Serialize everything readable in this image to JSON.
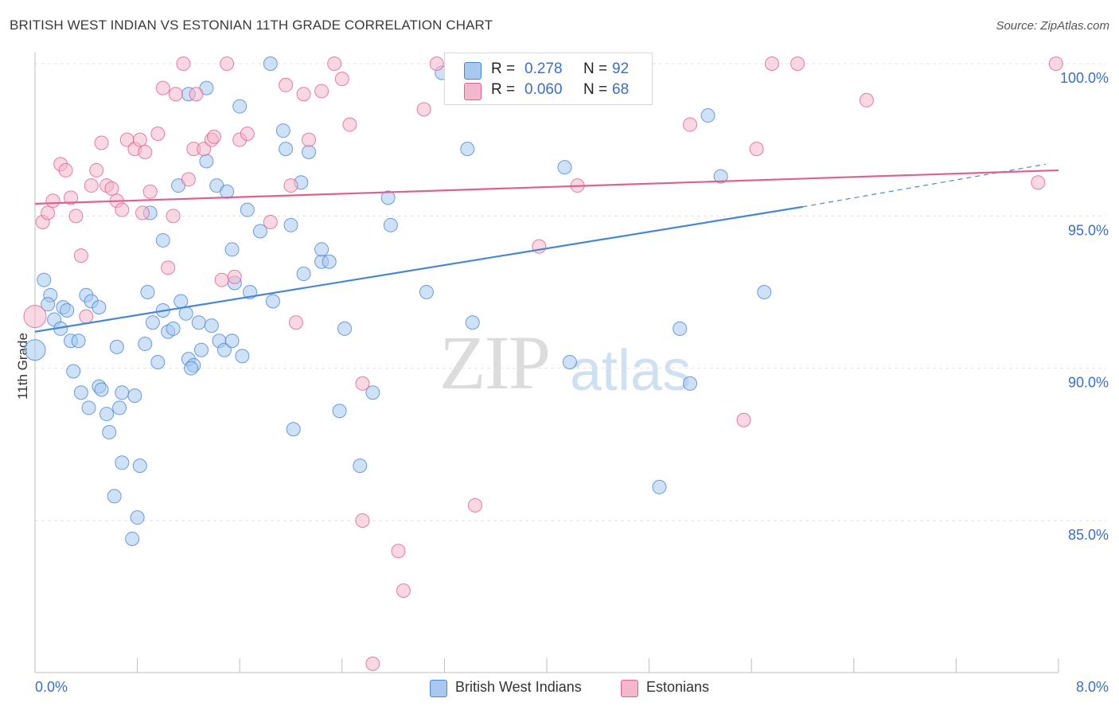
{
  "title": "BRITISH WEST INDIAN VS ESTONIAN 11TH GRADE CORRELATION CHART",
  "source": "Source: ZipAtlas.com",
  "watermark": {
    "zip": "ZIP",
    "atlas": "atlas"
  },
  "legend": {
    "r_label": "R =",
    "n_label": "N =",
    "rows": [
      {
        "name": "British West Indians",
        "r": "0.278",
        "n": "92",
        "color": "#a8c8f0"
      },
      {
        "name": "Estonians",
        "r": "0.060",
        "n": "68",
        "color": "#f4b8cc"
      }
    ]
  },
  "chart_data": {
    "type": "scatter",
    "title": "BRITISH WEST INDIAN VS ESTONIAN 11TH GRADE CORRELATION CHART",
    "xlabel": "",
    "ylabel": "11th Grade",
    "xlim": [
      0,
      8
    ],
    "ylim": [
      80,
      100.5
    ],
    "x_tick_labels": [
      "0.0%",
      "8.0%"
    ],
    "y_ticks": [
      85,
      90,
      95,
      100
    ],
    "y_tick_labels": [
      "85.0%",
      "90.0%",
      "95.0%",
      "100.0%"
    ],
    "grid": true,
    "series": [
      {
        "name": "British West Indians",
        "color": "#4a86d4",
        "fill": "#a8c8f0",
        "trend": {
          "x0": 0,
          "y0": 91.2,
          "x1": 6.0,
          "y1": 95.3,
          "dash_to_x": 7.9,
          "dash_to_y": 96.7
        },
        "points": [
          [
            0.0,
            90.6
          ],
          [
            0.07,
            92.9
          ],
          [
            0.12,
            92.4
          ],
          [
            0.1,
            92.1
          ],
          [
            0.15,
            91.6
          ],
          [
            0.22,
            92.0
          ],
          [
            0.25,
            91.9
          ],
          [
            0.2,
            91.3
          ],
          [
            0.28,
            90.9
          ],
          [
            0.34,
            90.9
          ],
          [
            0.3,
            89.9
          ],
          [
            0.4,
            92.4
          ],
          [
            0.44,
            92.2
          ],
          [
            0.5,
            92.0
          ],
          [
            0.36,
            89.2
          ],
          [
            0.42,
            88.7
          ],
          [
            0.5,
            89.4
          ],
          [
            0.52,
            89.3
          ],
          [
            0.66,
            88.7
          ],
          [
            0.68,
            89.2
          ],
          [
            0.78,
            89.1
          ],
          [
            0.58,
            87.9
          ],
          [
            0.68,
            86.9
          ],
          [
            0.82,
            86.8
          ],
          [
            0.62,
            85.8
          ],
          [
            0.8,
            85.1
          ],
          [
            0.76,
            84.4
          ],
          [
            0.64,
            90.7
          ],
          [
            0.86,
            90.8
          ],
          [
            0.96,
            90.2
          ],
          [
            0.92,
            91.5
          ],
          [
            1.04,
            91.2
          ],
          [
            0.88,
            92.5
          ],
          [
            1.0,
            91.9
          ],
          [
            1.08,
            91.3
          ],
          [
            1.14,
            92.2
          ],
          [
            1.2,
            90.3
          ],
          [
            1.24,
            90.1
          ],
          [
            1.3,
            90.6
          ],
          [
            1.28,
            91.5
          ],
          [
            1.38,
            91.4
          ],
          [
            1.44,
            90.9
          ],
          [
            1.48,
            90.6
          ],
          [
            1.54,
            90.9
          ],
          [
            1.62,
            90.4
          ],
          [
            1.56,
            92.8
          ],
          [
            1.68,
            92.5
          ],
          [
            1.86,
            92.2
          ],
          [
            1.0,
            94.2
          ],
          [
            1.12,
            96.0
          ],
          [
            1.2,
            99.0
          ],
          [
            1.34,
            96.8
          ],
          [
            1.42,
            96.0
          ],
          [
            1.5,
            95.8
          ],
          [
            1.54,
            93.9
          ],
          [
            1.34,
            99.2
          ],
          [
            1.6,
            98.6
          ],
          [
            1.66,
            95.2
          ],
          [
            0.9,
            95.1
          ],
          [
            1.84,
            100.0
          ],
          [
            1.94,
            97.8
          ],
          [
            1.96,
            97.2
          ],
          [
            2.0,
            94.7
          ],
          [
            2.08,
            96.1
          ],
          [
            2.1,
            93.1
          ],
          [
            2.14,
            97.1
          ],
          [
            2.24,
            93.5
          ],
          [
            2.24,
            93.9
          ],
          [
            2.3,
            93.5
          ],
          [
            2.38,
            88.6
          ],
          [
            2.02,
            88.0
          ],
          [
            2.42,
            91.3
          ],
          [
            2.54,
            86.8
          ],
          [
            2.64,
            89.2
          ],
          [
            2.76,
            95.6
          ],
          [
            2.78,
            94.7
          ],
          [
            3.06,
            92.5
          ],
          [
            3.18,
            99.7
          ],
          [
            3.38,
            97.2
          ],
          [
            3.42,
            91.5
          ],
          [
            4.14,
            96.6
          ],
          [
            4.18,
            90.2
          ],
          [
            4.88,
            86.1
          ],
          [
            5.04,
            91.3
          ],
          [
            5.12,
            89.5
          ],
          [
            5.26,
            98.3
          ],
          [
            5.36,
            96.3
          ],
          [
            5.7,
            92.5
          ],
          [
            1.18,
            91.8
          ],
          [
            1.22,
            90.0
          ],
          [
            0.56,
            88.5
          ],
          [
            1.76,
            94.5
          ]
        ]
      },
      {
        "name": "Estonians",
        "color": "#e0608e",
        "fill": "#f4b8cc",
        "trend": {
          "x0": 0,
          "y0": 95.4,
          "x1": 8.0,
          "y1": 96.5
        },
        "points": [
          [
            0.0,
            91.7
          ],
          [
            0.06,
            94.8
          ],
          [
            0.1,
            95.1
          ],
          [
            0.14,
            95.5
          ],
          [
            0.2,
            96.7
          ],
          [
            0.24,
            96.5
          ],
          [
            0.28,
            95.6
          ],
          [
            0.32,
            95.0
          ],
          [
            0.36,
            93.7
          ],
          [
            0.4,
            91.7
          ],
          [
            0.44,
            96.0
          ],
          [
            0.48,
            96.5
          ],
          [
            0.52,
            97.4
          ],
          [
            0.56,
            96.0
          ],
          [
            0.6,
            95.9
          ],
          [
            0.64,
            95.5
          ],
          [
            0.68,
            95.2
          ],
          [
            0.72,
            97.5
          ],
          [
            0.78,
            97.2
          ],
          [
            0.82,
            97.5
          ],
          [
            0.84,
            95.1
          ],
          [
            0.86,
            97.1
          ],
          [
            0.9,
            95.8
          ],
          [
            0.96,
            97.7
          ],
          [
            1.0,
            99.2
          ],
          [
            1.04,
            93.3
          ],
          [
            1.08,
            95.0
          ],
          [
            1.1,
            99.0
          ],
          [
            1.16,
            100.0
          ],
          [
            1.2,
            96.2
          ],
          [
            1.24,
            97.2
          ],
          [
            1.26,
            99.0
          ],
          [
            1.32,
            97.2
          ],
          [
            1.38,
            97.5
          ],
          [
            1.4,
            97.6
          ],
          [
            1.46,
            92.9
          ],
          [
            1.5,
            100.0
          ],
          [
            1.56,
            93.0
          ],
          [
            1.6,
            97.5
          ],
          [
            1.66,
            97.7
          ],
          [
            1.84,
            94.8
          ],
          [
            1.96,
            99.3
          ],
          [
            2.0,
            96.0
          ],
          [
            2.04,
            91.5
          ],
          [
            2.1,
            99.0
          ],
          [
            2.14,
            97.5
          ],
          [
            2.24,
            99.1
          ],
          [
            2.34,
            100.0
          ],
          [
            2.4,
            99.5
          ],
          [
            2.46,
            98.0
          ],
          [
            2.56,
            89.5
          ],
          [
            2.56,
            85.0
          ],
          [
            2.64,
            80.3
          ],
          [
            2.84,
            84.0
          ],
          [
            2.88,
            82.7
          ],
          [
            3.04,
            98.5
          ],
          [
            3.14,
            100.0
          ],
          [
            3.44,
            85.5
          ],
          [
            3.94,
            94.0
          ],
          [
            4.24,
            96.0
          ],
          [
            4.7,
            100.0
          ],
          [
            5.12,
            98.0
          ],
          [
            5.54,
            88.3
          ],
          [
            5.64,
            97.2
          ],
          [
            5.76,
            100.0
          ],
          [
            5.96,
            100.0
          ],
          [
            6.5,
            98.8
          ],
          [
            7.84,
            96.1
          ],
          [
            7.98,
            100.0
          ]
        ]
      }
    ]
  }
}
